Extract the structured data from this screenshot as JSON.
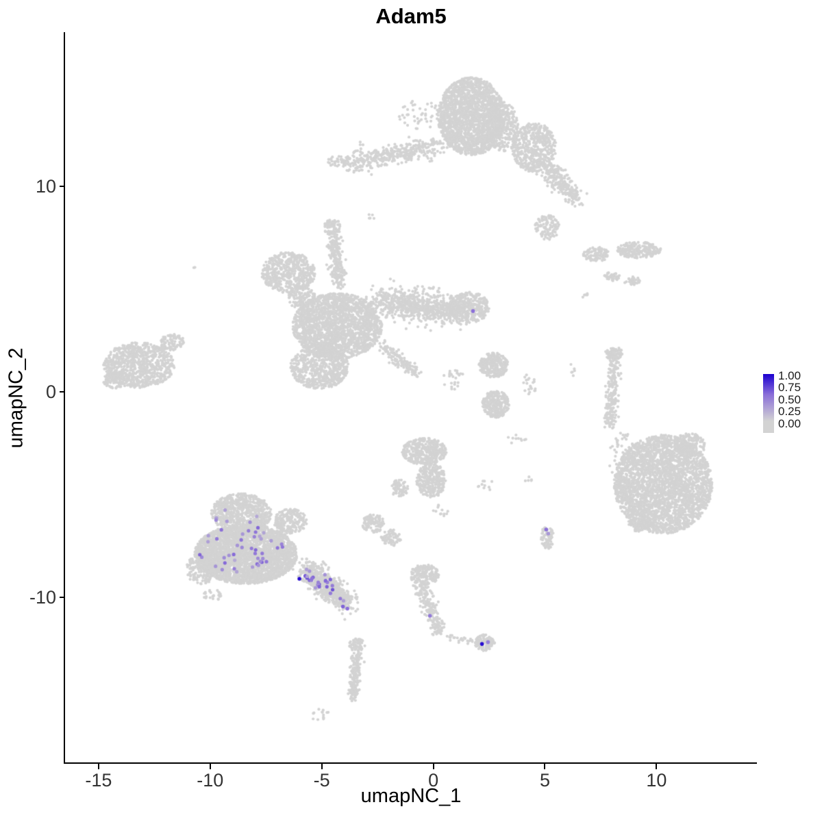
{
  "title": "Adam5",
  "axes": {
    "x_label": "umapNC_1",
    "y_label": "umapNC_2",
    "x_ticks": [
      "-15",
      "-10",
      "-5",
      "0",
      "5",
      "10"
    ],
    "y_ticks": [
      "10",
      "0",
      "-10"
    ]
  },
  "legend": {
    "labels": [
      "1.00",
      "0.75",
      "0.50",
      "0.25",
      "0.00"
    ]
  },
  "chart_data": {
    "type": "scatter",
    "title": "Adam5",
    "xlabel": "umapNC_1",
    "ylabel": "umapNC_2",
    "xlim": [
      -16.5,
      14.5
    ],
    "ylim": [
      -18.1,
      17.5
    ],
    "x_ticks": [
      -15,
      -10,
      -5,
      0,
      5,
      10
    ],
    "y_ticks": [
      10,
      0,
      -10
    ],
    "grid": false,
    "legend_position": "right",
    "color_scale": {
      "low": "#D3D3D3",
      "mid": "#8B6FD8",
      "high": "#1B00D0",
      "breaks": [
        1.0,
        0.75,
        0.5,
        0.25,
        0.0
      ]
    },
    "point_color_default": "#D3D3D3",
    "background_clusters": [
      {
        "kind": "blob",
        "cx": 1.7,
        "cy": 13.4,
        "rx": 1.5,
        "ry": 1.9,
        "n": 1900
      },
      {
        "kind": "strand",
        "x1": -3.8,
        "y1": 11.1,
        "x2": 0.3,
        "y2": 12.0,
        "jitter": 0.45,
        "n": 380
      },
      {
        "kind": "blob",
        "cx": -4.3,
        "cy": 11.2,
        "rx": 0.5,
        "ry": 0.3,
        "n": 35
      },
      {
        "kind": "blob",
        "cx": 4.5,
        "cy": 11.9,
        "rx": 1.0,
        "ry": 1.2,
        "n": 500
      },
      {
        "kind": "strand",
        "x1": 5.1,
        "y1": 10.9,
        "x2": 6.4,
        "y2": 9.4,
        "jitter": 0.42,
        "n": 260
      },
      {
        "kind": "blob",
        "cx": 5.1,
        "cy": 8.0,
        "rx": 0.55,
        "ry": 0.6,
        "n": 110
      },
      {
        "kind": "blob",
        "cx": 3.1,
        "cy": 12.9,
        "rx": 0.7,
        "ry": 1.2,
        "n": 300
      },
      {
        "kind": "blob",
        "cx": -0.6,
        "cy": 13.5,
        "rx": 1.0,
        "ry": 0.7,
        "n": 45
      },
      {
        "kind": "blob",
        "cx": -2.8,
        "cy": 8.5,
        "rx": 0.25,
        "ry": 0.2,
        "n": 5
      },
      {
        "kind": "blob",
        "cx": -3.4,
        "cy": 11.9,
        "rx": 0.35,
        "ry": 0.3,
        "n": 8
      },
      {
        "kind": "blob",
        "cx": -6.5,
        "cy": 5.8,
        "rx": 1.2,
        "ry": 1.0,
        "n": 520
      },
      {
        "kind": "strand",
        "x1": -4.45,
        "y1": 7.6,
        "x2": -4.25,
        "y2": 5.2,
        "jitter": 0.3,
        "n": 240
      },
      {
        "kind": "blob",
        "cx": -4.5,
        "cy": 8.0,
        "rx": 0.4,
        "ry": 0.4,
        "n": 70
      },
      {
        "kind": "blob",
        "cx": -4.3,
        "cy": 3.2,
        "rx": 2.0,
        "ry": 1.6,
        "n": 2000
      },
      {
        "kind": "strand",
        "x1": -2.4,
        "y1": 4.4,
        "x2": 1.2,
        "y2": 3.9,
        "jitter": 0.65,
        "n": 800
      },
      {
        "kind": "blob",
        "cx": 1.6,
        "cy": 4.1,
        "rx": 0.9,
        "ry": 0.75,
        "n": 320
      },
      {
        "kind": "blob",
        "cx": -5.1,
        "cy": 1.2,
        "rx": 1.3,
        "ry": 1.05,
        "n": 600
      },
      {
        "kind": "strand",
        "x1": -2.3,
        "y1": 2.3,
        "x2": -0.8,
        "y2": 0.9,
        "jitter": 0.25,
        "n": 140
      },
      {
        "kind": "blob",
        "cx": -5.9,
        "cy": 4.6,
        "rx": 0.6,
        "ry": 0.6,
        "n": 130
      },
      {
        "kind": "blob",
        "cx": -13.2,
        "cy": 1.3,
        "rx": 1.6,
        "ry": 1.1,
        "n": 800
      },
      {
        "kind": "blob",
        "cx": -11.7,
        "cy": 2.4,
        "rx": 0.55,
        "ry": 0.4,
        "n": 80
      },
      {
        "kind": "blob",
        "cx": -14.3,
        "cy": 0.6,
        "rx": 0.5,
        "ry": 0.45,
        "n": 90
      },
      {
        "kind": "blob",
        "cx": -10.7,
        "cy": 6.1,
        "rx": 0.07,
        "ry": 0.07,
        "n": 2
      },
      {
        "kind": "blob",
        "cx": 9.2,
        "cy": 6.9,
        "rx": 1.0,
        "ry": 0.4,
        "n": 220
      },
      {
        "kind": "blob",
        "cx": 7.3,
        "cy": 6.7,
        "rx": 0.6,
        "ry": 0.35,
        "n": 100
      },
      {
        "kind": "blob",
        "cx": 8.0,
        "cy": 5.6,
        "rx": 0.35,
        "ry": 0.22,
        "n": 35
      },
      {
        "kind": "blob",
        "cx": 8.9,
        "cy": 5.4,
        "rx": 0.35,
        "ry": 0.22,
        "n": 30
      },
      {
        "kind": "blob",
        "cx": 6.8,
        "cy": 4.7,
        "rx": 0.18,
        "ry": 0.12,
        "n": 6
      },
      {
        "kind": "strand",
        "x1": 8.15,
        "y1": 1.8,
        "x2": 7.9,
        "y2": -1.7,
        "jitter": 0.25,
        "n": 230
      },
      {
        "kind": "blob",
        "cx": 8.1,
        "cy": 1.9,
        "rx": 0.4,
        "ry": 0.3,
        "n": 60
      },
      {
        "kind": "blob",
        "cx": 8.2,
        "cy": -3.2,
        "rx": 0.35,
        "ry": 0.9,
        "n": 14
      },
      {
        "kind": "blob",
        "cx": 6.2,
        "cy": 1.0,
        "rx": 0.15,
        "ry": 0.35,
        "n": 6
      },
      {
        "kind": "blob",
        "cx": 10.3,
        "cy": -4.5,
        "rx": 2.2,
        "ry": 2.4,
        "n": 3000
      },
      {
        "kind": "blob",
        "cx": 11.5,
        "cy": -2.6,
        "rx": 0.7,
        "ry": 0.6,
        "n": 160
      },
      {
        "kind": "blob",
        "cx": 9.2,
        "cy": -6.3,
        "rx": 0.5,
        "ry": 0.5,
        "n": 90
      },
      {
        "kind": "blob",
        "cx": 8.5,
        "cy": -2.5,
        "rx": 0.5,
        "ry": 0.6,
        "n": 20
      },
      {
        "kind": "blob",
        "cx": 2.7,
        "cy": 1.3,
        "rx": 0.65,
        "ry": 0.6,
        "n": 280
      },
      {
        "kind": "blob",
        "cx": 2.8,
        "cy": -0.6,
        "rx": 0.6,
        "ry": 0.65,
        "n": 280
      },
      {
        "kind": "blob",
        "cx": 0.9,
        "cy": 0.6,
        "rx": 0.5,
        "ry": 0.5,
        "n": 25
      },
      {
        "kind": "blob",
        "cx": 4.3,
        "cy": 0.3,
        "rx": 0.3,
        "ry": 0.6,
        "n": 20
      },
      {
        "kind": "blob",
        "cx": -0.4,
        "cy": -2.9,
        "rx": 1.0,
        "ry": 0.65,
        "n": 380
      },
      {
        "kind": "blob",
        "cx": -0.1,
        "cy": -4.3,
        "rx": 0.65,
        "ry": 0.85,
        "n": 300
      },
      {
        "kind": "blob",
        "cx": -1.5,
        "cy": -4.7,
        "rx": 0.4,
        "ry": 0.45,
        "n": 70
      },
      {
        "kind": "blob",
        "cx": -2.7,
        "cy": -6.4,
        "rx": 0.5,
        "ry": 0.45,
        "n": 100
      },
      {
        "kind": "blob",
        "cx": -1.9,
        "cy": -7.1,
        "rx": 0.45,
        "ry": 0.4,
        "n": 70
      },
      {
        "kind": "blob",
        "cx": 0.3,
        "cy": -5.8,
        "rx": 0.35,
        "ry": 0.35,
        "n": 12
      },
      {
        "kind": "blob",
        "cx": 2.4,
        "cy": -4.5,
        "rx": 0.45,
        "ry": 0.3,
        "n": 10
      },
      {
        "kind": "blob",
        "cx": 4.3,
        "cy": -4.3,
        "rx": 0.2,
        "ry": 0.2,
        "n": 5
      },
      {
        "kind": "blob",
        "cx": 3.7,
        "cy": -2.3,
        "rx": 0.45,
        "ry": 0.35,
        "n": 10
      },
      {
        "kind": "blob",
        "cx": -0.4,
        "cy": -8.9,
        "rx": 0.65,
        "ry": 0.5,
        "n": 170
      },
      {
        "kind": "strand",
        "x1": -0.6,
        "y1": -9.3,
        "x2": 0.3,
        "y2": -11.7,
        "jitter": 0.28,
        "n": 210
      },
      {
        "kind": "blob",
        "cx": 2.3,
        "cy": -12.2,
        "rx": 0.45,
        "ry": 0.4,
        "n": 120
      },
      {
        "kind": "strand",
        "x1": 0.5,
        "y1": -11.9,
        "x2": 1.85,
        "y2": -12.15,
        "jitter": 0.15,
        "n": 25
      },
      {
        "kind": "strand",
        "x1": -3.4,
        "y1": -12.5,
        "x2": -3.6,
        "y2": -15.0,
        "jitter": 0.22,
        "n": 170
      },
      {
        "kind": "blob",
        "cx": -3.4,
        "cy": -12.3,
        "rx": 0.38,
        "ry": 0.3,
        "n": 55
      },
      {
        "kind": "blob",
        "cx": -5.1,
        "cy": -15.7,
        "rx": 0.5,
        "ry": 0.3,
        "n": 14
      },
      {
        "kind": "blob",
        "cx": -8.6,
        "cy": -5.9,
        "rx": 1.35,
        "ry": 0.95,
        "n": 700
      },
      {
        "kind": "blob",
        "cx": -8.4,
        "cy": -7.9,
        "rx": 2.3,
        "ry": 1.45,
        "n": 3000
      },
      {
        "kind": "strand",
        "x1": -5.7,
        "y1": -8.6,
        "x2": -3.9,
        "y2": -10.3,
        "jitter": 0.5,
        "n": 650
      },
      {
        "kind": "blob",
        "cx": -10.4,
        "cy": -8.6,
        "rx": 0.7,
        "ry": 0.75,
        "n": 180
      },
      {
        "kind": "blob",
        "cx": -6.4,
        "cy": -6.3,
        "rx": 0.75,
        "ry": 0.6,
        "n": 220
      },
      {
        "kind": "blob",
        "cx": -9.9,
        "cy": -9.9,
        "rx": 0.4,
        "ry": 0.3,
        "n": 25
      },
      {
        "kind": "blob",
        "cx": 5.1,
        "cy": -7.1,
        "rx": 0.3,
        "ry": 0.55,
        "n": 75
      }
    ],
    "expressing_cells": {
      "generated": [
        {
          "kind": "blob",
          "cx": -8.5,
          "cy": -7.7,
          "rx": 2.0,
          "ry": 1.2,
          "n": 42,
          "vmin": 0.2,
          "vmax": 0.55
        },
        {
          "kind": "strand",
          "x1": -5.8,
          "y1": -8.7,
          "x2": -4.2,
          "y2": -10.1,
          "jitter": 0.35,
          "n": 26,
          "vmin": 0.25,
          "vmax": 0.7
        },
        {
          "kind": "blob",
          "cx": -8.8,
          "cy": -6.0,
          "rx": 1.1,
          "ry": 0.6,
          "n": 7,
          "vmin": 0.2,
          "vmax": 0.45
        }
      ],
      "points": [
        {
          "x": -6.0,
          "y": -9.1,
          "value": 0.95
        },
        {
          "x": -4.05,
          "y": -10.45,
          "value": 0.55
        },
        {
          "x": -3.85,
          "y": -10.55,
          "value": 0.5
        },
        {
          "x": 1.78,
          "y": 3.93,
          "value": 0.5
        },
        {
          "x": 5.06,
          "y": -6.7,
          "value": 0.5
        },
        {
          "x": 5.15,
          "y": -6.9,
          "value": 0.3
        },
        {
          "x": -0.15,
          "y": -10.9,
          "value": 0.45
        },
        {
          "x": 2.18,
          "y": -12.27,
          "value": 0.95
        },
        {
          "x": 2.45,
          "y": -12.18,
          "value": 0.4
        }
      ]
    }
  }
}
